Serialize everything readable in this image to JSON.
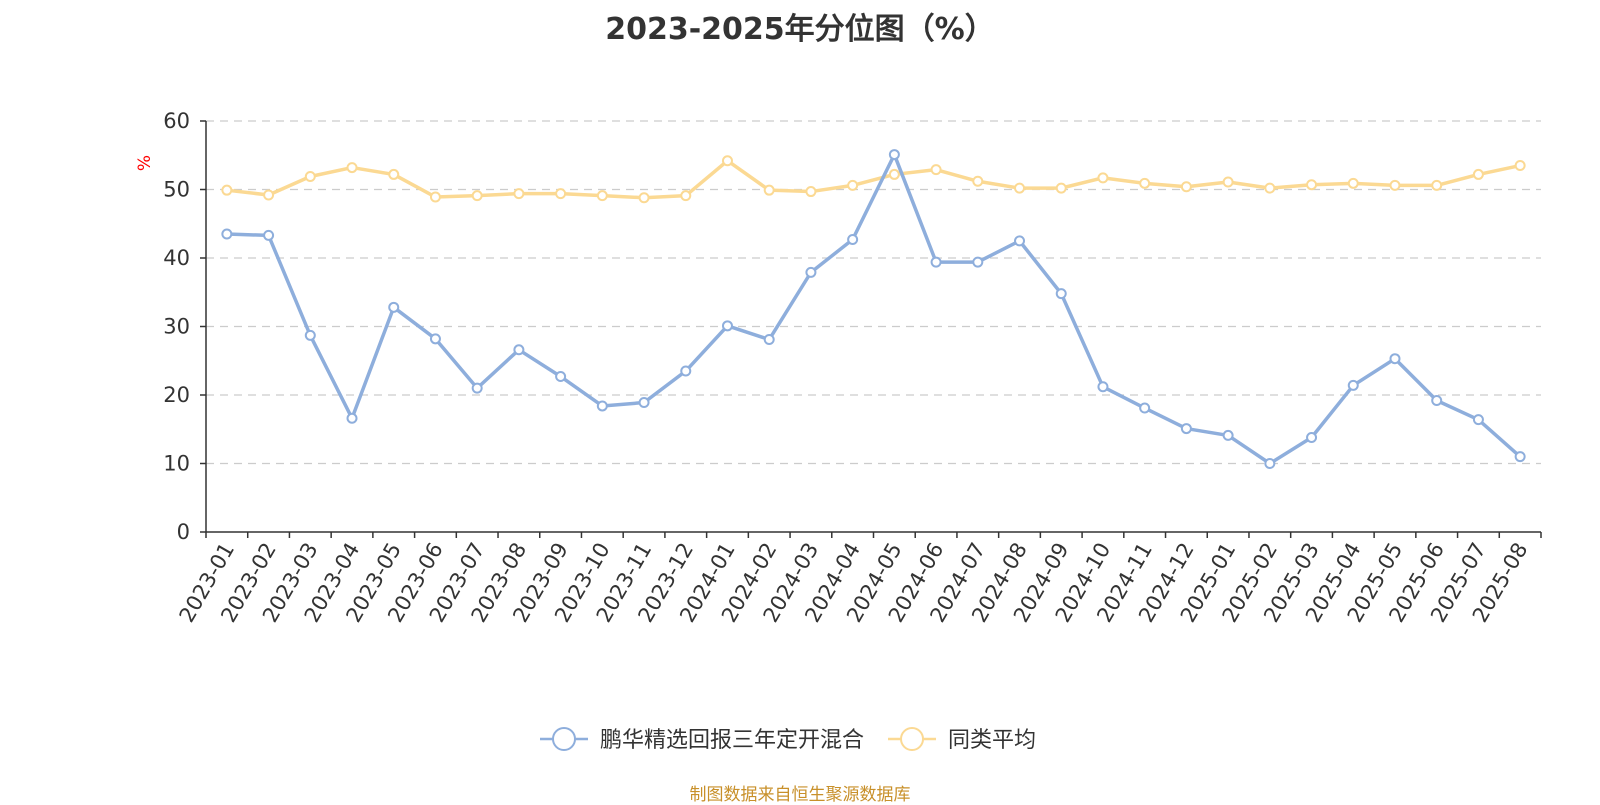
{
  "chart_data": {
    "type": "line",
    "title": "2023-2025年分位图（%）",
    "ylabel": "%",
    "xlabel": "",
    "ylim": [
      0,
      60
    ],
    "yticks": [
      0,
      10,
      20,
      30,
      40,
      50,
      60
    ],
    "grid": true,
    "legend_position": "bottom-center",
    "categories": [
      "2023-01",
      "2023-02",
      "2023-03",
      "2023-04",
      "2023-05",
      "2023-06",
      "2023-07",
      "2023-08",
      "2023-09",
      "2023-10",
      "2023-11",
      "2023-12",
      "2024-01",
      "2024-02",
      "2024-03",
      "2024-04",
      "2024-05",
      "2024-06",
      "2024-07",
      "2024-08",
      "2024-09",
      "2024-10",
      "2024-11",
      "2024-12",
      "2025-01",
      "2025-02",
      "2025-03",
      "2025-04",
      "2025-05",
      "2025-06",
      "2025-07",
      "2025-08"
    ],
    "series": [
      {
        "name": "鹏华精选回报三年定开混合",
        "color": "#8eaedc",
        "values": [
          43.5,
          43.3,
          28.7,
          16.6,
          32.8,
          28.2,
          21.0,
          26.6,
          22.7,
          18.4,
          18.9,
          23.5,
          30.1,
          28.1,
          37.9,
          42.7,
          55.1,
          39.4,
          39.4,
          42.5,
          34.8,
          21.2,
          18.1,
          15.1,
          14.1,
          10.0,
          13.8,
          21.4,
          25.3,
          19.2,
          16.4,
          11.0
        ]
      },
      {
        "name": "同类平均",
        "color": "#fbd993",
        "values": [
          49.9,
          49.2,
          51.9,
          53.2,
          52.2,
          48.9,
          49.1,
          49.4,
          49.4,
          49.1,
          48.8,
          49.1,
          54.2,
          49.9,
          49.7,
          50.6,
          52.2,
          52.9,
          51.2,
          50.2,
          50.2,
          51.7,
          50.9,
          50.4,
          51.1,
          50.2,
          50.7,
          50.9,
          50.6,
          50.6,
          52.2,
          53.5
        ]
      }
    ]
  },
  "source_note": "制图数据来自恒生聚源数据库",
  "axis_color": "#333333",
  "grid_color": "#cccccc",
  "ylabel_color": "#ff0000"
}
